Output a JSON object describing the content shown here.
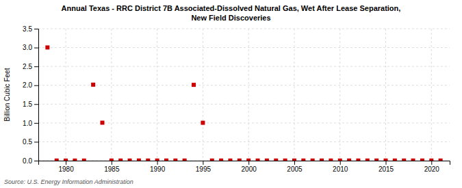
{
  "chart_data": {
    "type": "scatter",
    "title": "Annual Texas - RRC District 7B Associated-Dissolved Natural Gas, Wet After Lease Separation,\nNew Field Discoveries",
    "y_label": "Billion Cubic Feet",
    "source": "Source: U.S. Energy Information Administration",
    "color": "#cc0000",
    "marker": "square",
    "grid": true,
    "xlim": [
      1977,
      2022
    ],
    "ylim": [
      0.0,
      3.5
    ],
    "xticks": [
      1980,
      1985,
      1990,
      1995,
      2000,
      2005,
      2010,
      2015,
      2020
    ],
    "yticks": [
      {
        "value": 0.0,
        "label": "0.0"
      },
      0.5,
      {
        "value": 1.0,
        "label": "1.0"
      },
      1.5,
      {
        "value": 2.0,
        "label": "2.0"
      },
      2.5,
      {
        "value": 3.0,
        "label": "3.0"
      },
      3.5
    ],
    "x": [
      1978,
      1979,
      1980,
      1981,
      1982,
      1983,
      1984,
      1985,
      1986,
      1987,
      1988,
      1989,
      1990,
      1991,
      1992,
      1993,
      1994,
      1995,
      1996,
      1997,
      1998,
      1999,
      2000,
      2001,
      2002,
      2003,
      2004,
      2005,
      2006,
      2007,
      2008,
      2009,
      2010,
      2011,
      2012,
      2013,
      2014,
      2015,
      2016,
      2017,
      2018,
      2019,
      2020,
      2021
    ],
    "values": [
      3.003,
      0.003,
      0.002,
      0.002,
      0.002,
      2.016,
      1.007,
      0.003,
      0.003,
      0.003,
      0.004,
      0.003,
      0.003,
      0.003,
      0.003,
      0.003,
      2.011,
      1.005,
      0.003,
      0.003,
      0.003,
      0.003,
      0.003,
      0.003,
      0.003,
      0.003,
      0.003,
      0.003,
      0.003,
      0.003,
      0.003,
      0.003,
      0.003,
      0.003,
      0.003,
      0.003,
      0.003,
      0.003,
      0.003,
      0.003,
      0.003,
      0.003,
      0.003,
      0.003
    ]
  }
}
